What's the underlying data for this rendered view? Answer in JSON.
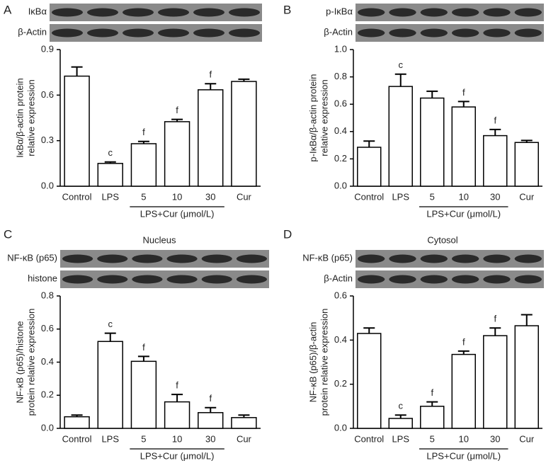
{
  "chart_data": [
    {
      "type": "bar",
      "panel": "A",
      "blots": [
        "IκBα",
        "β-Actin"
      ],
      "ylabel": [
        "IκBα/β-actin protein",
        "relative expression"
      ],
      "categories": [
        "Control",
        "LPS",
        "5",
        "10",
        "30",
        "Cur"
      ],
      "group_label": "LPS+Cur (μmol/L)",
      "values": [
        0.725,
        0.15,
        0.28,
        0.425,
        0.635,
        0.69
      ],
      "errors": [
        0.06,
        0.01,
        0.015,
        0.015,
        0.04,
        0.015
      ],
      "sig": [
        null,
        "c",
        "f",
        "f",
        "f",
        null
      ],
      "ylim": [
        0,
        0.9
      ],
      "yticks": [
        {
          "value": 0,
          "label": "0.0"
        },
        0.3,
        0.6,
        0.9
      ],
      "color": "#ffffff"
    },
    {
      "type": "bar",
      "panel": "B",
      "blots": [
        "p-IκBα",
        "β-Actin"
      ],
      "ylabel": [
        "p-IκBα/β-actin protein",
        "relative expression"
      ],
      "categories": [
        "Control",
        "LPS",
        "5",
        "10",
        "30",
        "Cur"
      ],
      "group_label": "LPS+Cur (μmol/L)",
      "values": [
        0.285,
        0.73,
        0.645,
        0.58,
        0.37,
        0.32
      ],
      "errors": [
        0.045,
        0.09,
        0.05,
        0.04,
        0.045,
        0.015
      ],
      "sig": [
        null,
        "c",
        null,
        "f",
        "f",
        null
      ],
      "ylim": [
        0,
        1.0
      ],
      "yticks": [
        {
          "value": 0,
          "label": "0.0"
        },
        0.2,
        0.4,
        0.6,
        0.8,
        {
          "value": 1,
          "label": "1.0"
        }
      ],
      "color": "#ffffff"
    },
    {
      "type": "bar",
      "panel": "C",
      "title": "Nucleus",
      "blots": [
        "NF-κB (p65)",
        "histone"
      ],
      "ylabel": [
        "NF-κB (p65)/histone",
        "protein relative expression"
      ],
      "categories": [
        "Control",
        "LPS",
        "5",
        "10",
        "30",
        "Cur"
      ],
      "group_label": "LPS+Cur (μmol/L)",
      "values": [
        0.07,
        0.525,
        0.405,
        0.16,
        0.095,
        0.065
      ],
      "errors": [
        0.01,
        0.05,
        0.03,
        0.045,
        0.03,
        0.015
      ],
      "sig": [
        null,
        "c",
        "f",
        "f",
        "f",
        null
      ],
      "ylim": [
        0,
        0.8
      ],
      "yticks": [
        {
          "value": 0,
          "label": "0.0"
        },
        0.2,
        0.4,
        0.6,
        0.8
      ],
      "color": "#ffffff"
    },
    {
      "type": "bar",
      "panel": "D",
      "title": "Cytosol",
      "blots": [
        "NF-κB (p65)",
        "β-Actin"
      ],
      "ylabel": [
        "NF-κB (p65)/β-actin",
        "protein relative expression"
      ],
      "categories": [
        "Control",
        "LPS",
        "5",
        "10",
        "30",
        "Cur"
      ],
      "group_label": "LPS+Cur (μmol/L)",
      "values": [
        0.43,
        0.045,
        0.1,
        0.335,
        0.42,
        0.465
      ],
      "errors": [
        0.025,
        0.015,
        0.02,
        0.015,
        0.035,
        0.05
      ],
      "sig": [
        null,
        "c",
        "f",
        "f",
        "f",
        null
      ],
      "ylim": [
        0,
        0.6
      ],
      "yticks": [
        {
          "value": 0,
          "label": "0.0"
        },
        0.2,
        0.4,
        0.6
      ],
      "color": "#ffffff"
    }
  ]
}
